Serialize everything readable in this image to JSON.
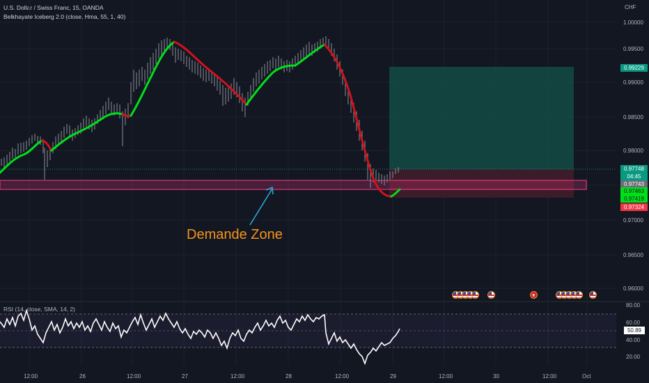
{
  "header": {
    "symbol_line": "U.S. Dollar / Swiss Franc, 15, OANDA",
    "indicator_line": "Belkhayate Iceberg 2.0 (close, Hma, 55, 1, 40)",
    "currency": "CHF"
  },
  "price_axis": {
    "ticks": [
      "1.00000",
      "0.99500",
      "0.99000",
      "0.98500",
      "0.98000",
      "0.97500",
      "0.97000",
      "0.96500",
      "0.96000"
    ]
  },
  "price_badges": {
    "target": "0.99229",
    "current": "0.97748",
    "countdown": "04:45",
    "hma_1": "0.97743",
    "hma_2": "0.97463",
    "hma_3": "0.97419",
    "stop": "0.97324"
  },
  "annotation": {
    "text": "Demande Zone"
  },
  "rsi": {
    "title": "RSI (14, close, SMA, 14, 2)",
    "ticks": [
      "80.00",
      "60.00",
      "40.00",
      "20.00"
    ],
    "value": "50.89"
  },
  "time_axis": {
    "labels": [
      "12:00",
      "26",
      "12:00",
      "27",
      "12:00",
      "28",
      "12:00",
      "29",
      "12:00",
      "30",
      "12:00",
      "Oct"
    ]
  },
  "events": {
    "icons": [
      "us-flag-icon",
      "us-flag-icon",
      "us-flag-icon",
      "us-flag-icon",
      "us-flag-icon",
      "ch-flag-icon",
      "us-flag-icon",
      "us-flag-icon",
      "us-flag-icon",
      "us-flag-icon",
      "us-flag-icon"
    ]
  },
  "colors": {
    "background": "#131722",
    "bull": "#00e01a",
    "bear": "#d1131b",
    "target_zone": "#134843",
    "stop_zone": "#3d1c2a",
    "demand_zone": "#ff3a85",
    "annotation": "#f7931a",
    "arrow": "#26a9d8",
    "rsi_line": "#ffffff"
  }
}
